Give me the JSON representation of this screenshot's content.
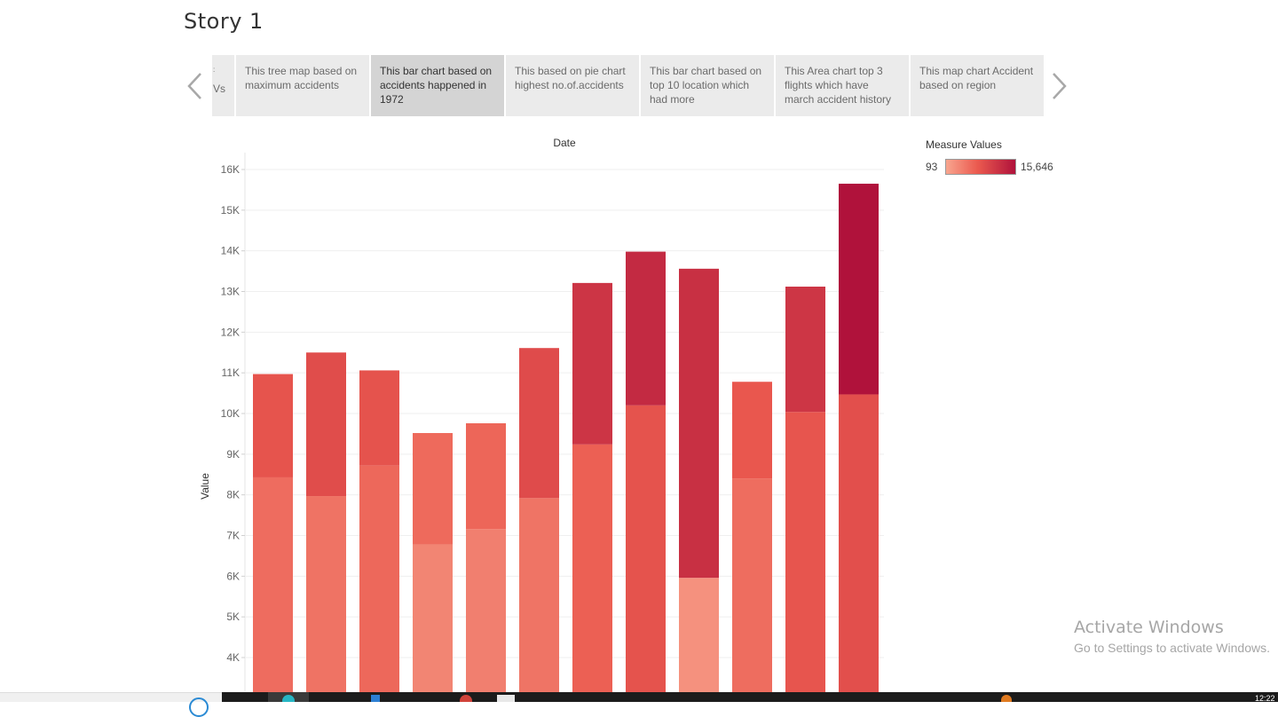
{
  "story": {
    "title": "Story 1",
    "points": [
      {
        "text": "Vs",
        "partial": true,
        "active": false
      },
      {
        "text": "This tree map based on maximum accidents",
        "active": false
      },
      {
        "text": "This bar chart based on accidents happened in 1972",
        "active": true
      },
      {
        "text": "This based on pie chart highest no.of.accidents",
        "active": false
      },
      {
        "text": "This bar chart based on top 10 location which had more",
        "active": false
      },
      {
        "text": "This Area chart top 3 flights which have march accident history",
        "active": false
      },
      {
        "text": "This map chart Accident based on region",
        "active": false
      }
    ]
  },
  "legend": {
    "title": "Measure Values",
    "min": "93",
    "max": "15,646",
    "colors": {
      "low": "#f8a58f",
      "mid": "#eb5a4f",
      "high": "#b0123b"
    }
  },
  "chart_data": {
    "type": "bar",
    "stacked": true,
    "title": "Date",
    "xlabel": "",
    "ylabel": "Value",
    "ylim_visible": [
      3600,
      16400
    ],
    "yticks": [
      "4K",
      "5K",
      "6K",
      "7K",
      "8K",
      "9K",
      "10K",
      "11K",
      "12K",
      "13K",
      "14K",
      "15K",
      "16K"
    ],
    "ytick_values": [
      4000,
      5000,
      6000,
      7000,
      8000,
      9000,
      10000,
      11000,
      12000,
      13000,
      14000,
      15000,
      16000
    ],
    "grid": true,
    "series": [
      {
        "values": [
          8430,
          7970,
          8720,
          6780,
          7160,
          7920,
          9240,
          10200,
          5960,
          8400,
          10040,
          10470
        ]
      },
      {
        "values": [
          2540,
          3530,
          2340,
          2740,
          2600,
          3690,
          3970,
          3780,
          7600,
          2380,
          3080,
          5180
        ]
      }
    ],
    "totals": [
      10970,
      11500,
      11060,
      9520,
      9760,
      11610,
      13210,
      13980,
      13560,
      10780,
      13120,
      15650
    ]
  },
  "watermark": {
    "line1": "Activate Windows",
    "line2": "Go to Settings to activate Windows."
  },
  "taskbar": {
    "clock": "12:22"
  }
}
